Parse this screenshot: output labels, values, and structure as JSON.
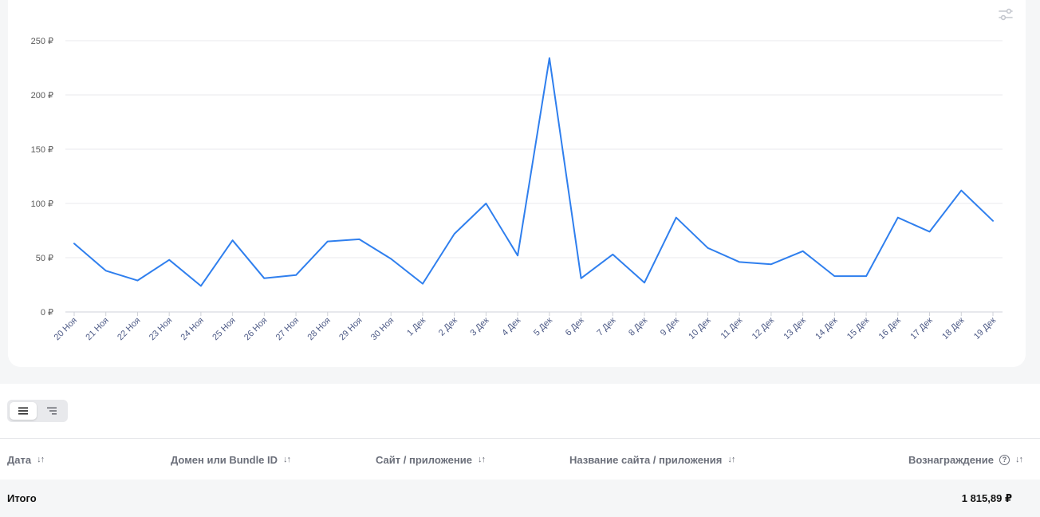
{
  "chart_data": {
    "type": "line",
    "x": [
      "20 Ноя",
      "21 Ноя",
      "22 Ноя",
      "23 Ноя",
      "24 Ноя",
      "25 Ноя",
      "26 Ноя",
      "27 Ноя",
      "28 Ноя",
      "29 Ноя",
      "30 Ноя",
      "1 Дек",
      "2 Дек",
      "3 Дек",
      "4 Дек",
      "5 Дек",
      "6 Дек",
      "7 Дек",
      "8 Дек",
      "9 Дек",
      "10 Дек",
      "11 Дек",
      "12 Дек",
      "13 Дек",
      "14 Дек",
      "15 Дек",
      "16 Дек",
      "17 Дек",
      "18 Дек",
      "19 Дек"
    ],
    "series": [
      {
        "values": [
          63,
          38,
          29,
          48,
          24,
          66,
          31,
          34,
          65,
          67,
          49,
          26,
          72,
          100,
          52,
          234,
          31,
          53,
          27,
          87,
          59,
          46,
          44,
          56,
          33,
          33,
          87,
          74,
          112,
          84
        ],
        "color": "#2f7fee"
      }
    ],
    "yticks": [
      "0 ₽",
      "50 ₽",
      "100 ₽",
      "150 ₽",
      "200 ₽",
      "250 ₽"
    ],
    "ylim": [
      0,
      250
    ],
    "grid": true,
    "xlabel": "",
    "ylabel": ""
  },
  "icons": {
    "settings": "sliders-icon",
    "list_view": "list-icon",
    "tree_view": "tree-list-icon"
  },
  "table": {
    "columns": [
      {
        "label": "Дата",
        "sort": "↓↑"
      },
      {
        "label": "Домен или Bundle ID",
        "sort": "↓↑"
      },
      {
        "label": "Сайт / приложение",
        "sort": "↓↑"
      },
      {
        "label": "Название сайта / приложения",
        "sort": "↓↑"
      },
      {
        "label": "Вознаграждение",
        "sort": "↓↑",
        "help": "?"
      }
    ],
    "total": {
      "label": "Итого",
      "value": "1 815,89 ₽"
    }
  }
}
